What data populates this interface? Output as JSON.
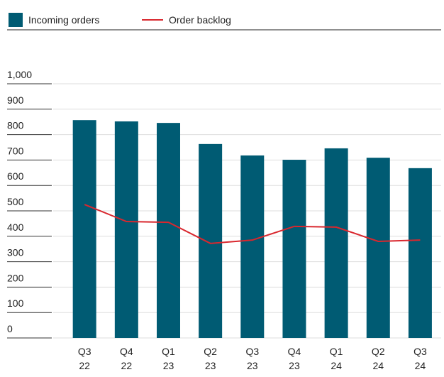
{
  "chart_data": {
    "type": "bar",
    "categories": [
      "Q3 22",
      "Q4 22",
      "Q1 23",
      "Q2 23",
      "Q3 23",
      "Q4 23",
      "Q1 24",
      "Q2 24",
      "Q3 24"
    ],
    "series": [
      {
        "name": "Incoming orders",
        "type": "bar",
        "color": "#005b73",
        "values": [
          857,
          852,
          846,
          763,
          718,
          701,
          746,
          709,
          668
        ]
      },
      {
        "name": "Order backlog",
        "type": "line",
        "color": "#d9272e",
        "values": [
          525,
          458,
          455,
          372,
          385,
          439,
          436,
          380,
          385
        ]
      }
    ],
    "ylim": [
      0,
      1000
    ],
    "yticks": [
      0,
      100,
      200,
      300,
      400,
      500,
      600,
      700,
      800,
      900,
      {
        "value": 1000,
        "label": "1,000"
      }
    ],
    "grid": true,
    "legend": "top"
  }
}
